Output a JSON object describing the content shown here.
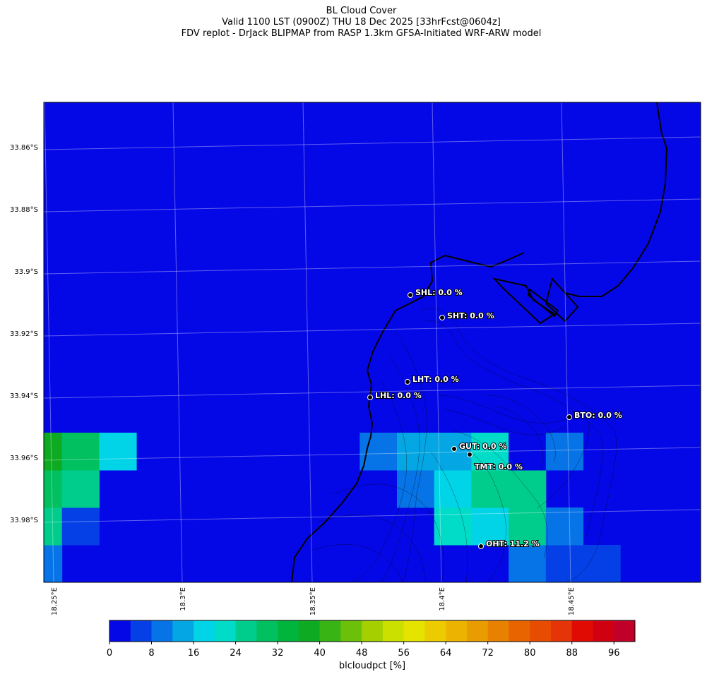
{
  "header": {
    "title": "BL Cloud Cover",
    "line2": "Valid 1100 LST (0900Z) THU 18 Dec 2025 [33hrFcst@0604z]",
    "line3": "FDV replot - DrJack BLIPMAP from RASP 1.3km GFSA-Initiated WRF-ARW model"
  },
  "map": {
    "lat_labels": [
      "33.86°S",
      "33.88°S",
      "33.9°S",
      "33.92°S",
      "33.94°S",
      "33.96°S",
      "33.98°S"
    ],
    "lon_labels": [
      "18.25°E",
      "18.3°E",
      "18.35°E",
      "18.4°E",
      "18.45°E"
    ],
    "background_color": "#0508e6",
    "stations": [
      {
        "id": "SHL",
        "label": "SHL: 0.0 %"
      },
      {
        "id": "SHT",
        "label": "SHT: 0.0 %"
      },
      {
        "id": "LHT",
        "label": "LHT: 0.0 %"
      },
      {
        "id": "LHL",
        "label": "LHL: 0.0 %"
      },
      {
        "id": "BTO",
        "label": "BTO: 0.0 %"
      },
      {
        "id": "GUT",
        "label": "GUT: 0.0 %"
      },
      {
        "id": "TMT",
        "label": "TMT: 0.0 %"
      },
      {
        "id": "OHT",
        "label": "OHT: 11.2 %"
      }
    ],
    "cloud_cells": [
      {
        "col": 0,
        "row": 0,
        "value": 10
      },
      {
        "col": 0,
        "row": 1,
        "value": 25
      },
      {
        "col": 1,
        "row": 1,
        "value": 6
      },
      {
        "col": 0,
        "row": 2,
        "value": 30
      },
      {
        "col": 1,
        "row": 2,
        "value": 24
      },
      {
        "col": 0,
        "row": 3,
        "value": 37
      },
      {
        "col": 1,
        "row": 3,
        "value": 31
      },
      {
        "col": 2,
        "row": 3,
        "value": 16
      },
      {
        "col": 13,
        "row": 0,
        "value": 8
      },
      {
        "col": 14,
        "row": 0,
        "value": 6
      },
      {
        "col": 15,
        "row": 0,
        "value": 5
      },
      {
        "col": 11,
        "row": 1,
        "value": 22
      },
      {
        "col": 12,
        "row": 1,
        "value": 18
      },
      {
        "col": 13,
        "row": 1,
        "value": 24
      },
      {
        "col": 14,
        "row": 1,
        "value": 10
      },
      {
        "col": 10,
        "row": 2,
        "value": 11
      },
      {
        "col": 11,
        "row": 2,
        "value": 18
      },
      {
        "col": 12,
        "row": 2,
        "value": 27
      },
      {
        "col": 13,
        "row": 2,
        "value": 27
      },
      {
        "col": 9,
        "row": 3,
        "value": 10
      },
      {
        "col": 10,
        "row": 3,
        "value": 14
      },
      {
        "col": 11,
        "row": 3,
        "value": 12
      },
      {
        "col": 12,
        "row": 3,
        "value": 20
      },
      {
        "col": 13,
        "row": 3,
        "value": 2
      },
      {
        "col": 14,
        "row": 3,
        "value": 10
      }
    ]
  },
  "colorbar": {
    "label": "blcloudpct [%]",
    "ticks": [
      "0",
      "8",
      "16",
      "24",
      "32",
      "40",
      "48",
      "56",
      "64",
      "72",
      "80",
      "88",
      "96"
    ],
    "range": [
      0,
      100
    ],
    "colors": [
      "#0508e6",
      "#0540e6",
      "#0673e6",
      "#04a6e3",
      "#00d4e6",
      "#00dcc8",
      "#00cc8c",
      "#00c060",
      "#00b43c",
      "#0eab22",
      "#38b414",
      "#6cc00a",
      "#a4d000",
      "#cce000",
      "#e4e400",
      "#eccc00",
      "#ecb400",
      "#e89c00",
      "#e88000",
      "#e86400",
      "#e84c00",
      "#e43408",
      "#e00c04",
      "#d00010",
      "#c00028"
    ]
  }
}
